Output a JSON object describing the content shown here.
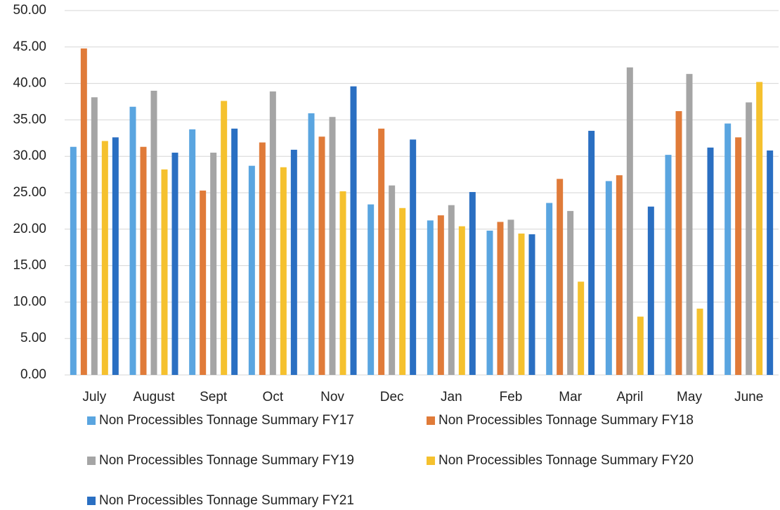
{
  "chart_data": {
    "type": "bar",
    "categories": [
      "July",
      "August",
      "Sept",
      "Oct",
      "Nov",
      "Dec",
      "Jan",
      "Feb",
      "Mar",
      "April",
      "May",
      "June"
    ],
    "series": [
      {
        "name": "Non Processibles Tonnage Summary FY17",
        "color": "#5aa5e0",
        "values": [
          31.3,
          36.8,
          33.7,
          28.7,
          35.9,
          23.4,
          21.2,
          19.8,
          23.6,
          26.6,
          30.2,
          34.5
        ]
      },
      {
        "name": "Non Processibles Tonnage Summary FY18",
        "color": "#e07b39",
        "values": [
          44.8,
          31.3,
          25.3,
          31.9,
          32.7,
          33.8,
          21.9,
          21.0,
          26.9,
          27.4,
          36.2,
          32.6
        ]
      },
      {
        "name": "Non Processibles Tonnage Summary FY19",
        "color": "#a5a5a5",
        "values": [
          38.1,
          39.0,
          30.5,
          38.9,
          35.4,
          26.0,
          23.3,
          21.3,
          22.5,
          42.2,
          41.3,
          37.4
        ]
      },
      {
        "name": "Non Processibles Tonnage Summary FY20",
        "color": "#f5c12e",
        "values": [
          32.1,
          28.2,
          37.6,
          28.5,
          25.2,
          22.9,
          20.4,
          19.4,
          12.8,
          8.0,
          9.1,
          40.2
        ]
      },
      {
        "name": "Non Processibles Tonnage Summary FY21",
        "color": "#2a6fc2",
        "values": [
          32.6,
          30.5,
          33.8,
          30.9,
          39.6,
          32.3,
          25.1,
          19.3,
          33.5,
          23.1,
          31.2,
          30.8
        ]
      }
    ],
    "ylim": [
      0,
      50
    ],
    "yticks": [
      {
        "value": 0,
        "label": "0.00"
      },
      {
        "value": 5,
        "label": "5.00"
      },
      {
        "value": 10,
        "label": "10.00"
      },
      {
        "value": 15,
        "label": "15.00"
      },
      {
        "value": 20,
        "label": "20.00"
      },
      {
        "value": 25,
        "label": "25.00"
      },
      {
        "value": 30,
        "label": "30.00"
      },
      {
        "value": 35,
        "label": "35.00"
      },
      {
        "value": 40,
        "label": "40.00"
      },
      {
        "value": 45,
        "label": "45.00"
      },
      {
        "value": 50,
        "label": "50.00"
      }
    ],
    "grid": true
  }
}
